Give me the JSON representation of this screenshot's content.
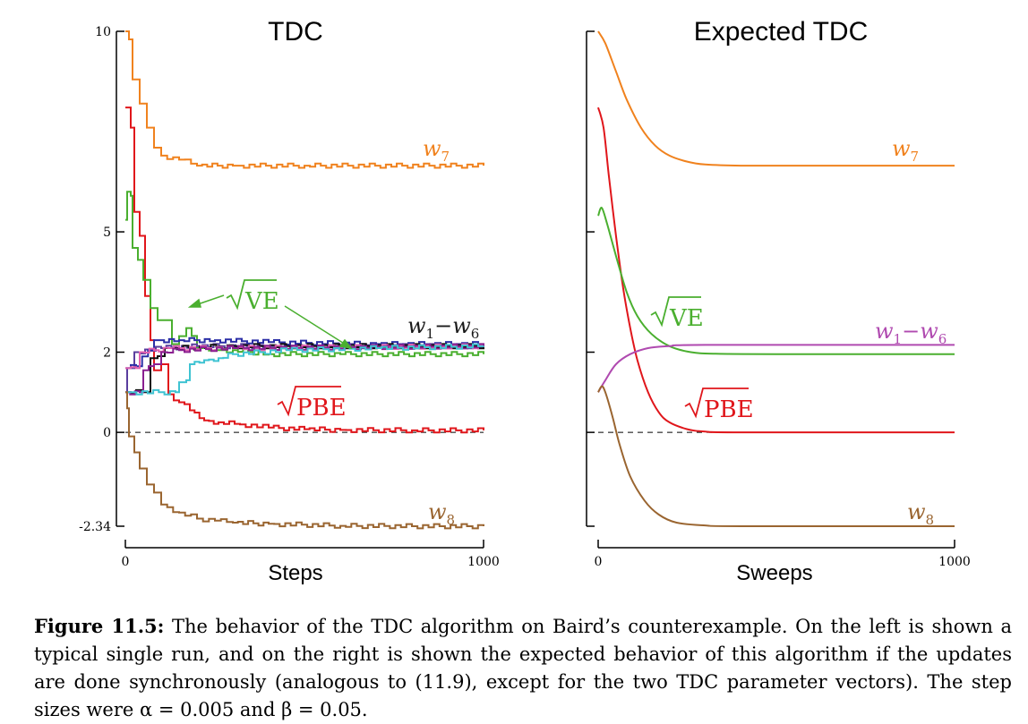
{
  "chart_data": [
    {
      "type": "line",
      "title": "TDC",
      "xlabel": "Steps",
      "ylabel": "",
      "xlim": [
        0,
        1000
      ],
      "ylim": [
        -2.34,
        10
      ],
      "x_ticks": [
        "0",
        "1000"
      ],
      "y_ticks": [
        "10",
        "5",
        "2",
        "0",
        "-2.34"
      ],
      "y_tick_values": [
        10,
        5,
        2,
        0,
        -2.34
      ],
      "reference_line": {
        "y": 0,
        "style": "dashed"
      },
      "series": [
        {
          "name": "w7",
          "label": "w",
          "sub": "7",
          "color": "#f0821e",
          "points": [
            [
              0,
              10
            ],
            [
              10,
              9.8
            ],
            [
              20,
              8.8
            ],
            [
              40,
              8.2
            ],
            [
              60,
              7.6
            ],
            [
              80,
              7.1
            ],
            [
              100,
              6.9
            ],
            [
              150,
              6.8
            ],
            [
              200,
              6.65
            ],
            [
              300,
              6.65
            ],
            [
              500,
              6.65
            ],
            [
              1000,
              6.65
            ]
          ]
        },
        {
          "name": "√PBE",
          "label": "PBE",
          "color": "#e0161b",
          "points": [
            [
              0,
              8.1
            ],
            [
              15,
              7.6
            ],
            [
              25,
              5.5
            ],
            [
              40,
              4.9
            ],
            [
              55,
              3.4
            ],
            [
              70,
              2.3
            ],
            [
              80,
              1.55
            ],
            [
              100,
              1.7
            ],
            [
              120,
              0.95
            ],
            [
              150,
              0.75
            ],
            [
              180,
              0.55
            ],
            [
              220,
              0.3
            ],
            [
              260,
              0.25
            ],
            [
              320,
              0.2
            ],
            [
              400,
              0.12
            ],
            [
              500,
              0.08
            ],
            [
              600,
              0.06
            ],
            [
              800,
              0.05
            ],
            [
              1000,
              0.05
            ]
          ]
        },
        {
          "name": "√VE",
          "label": "VE",
          "color": "#4aaf2f",
          "points": [
            [
              0,
              5.3
            ],
            [
              5,
              6.0
            ],
            [
              15,
              5.9
            ],
            [
              20,
              4.6
            ],
            [
              35,
              4.3
            ],
            [
              50,
              3.8
            ],
            [
              70,
              3.1
            ],
            [
              90,
              2.8
            ],
            [
              110,
              2.8
            ],
            [
              130,
              2.2
            ],
            [
              150,
              2.4
            ],
            [
              170,
              2.6
            ],
            [
              200,
              2.1
            ],
            [
              250,
              2.05
            ],
            [
              300,
              2.05
            ],
            [
              400,
              1.95
            ],
            [
              600,
              1.95
            ],
            [
              1000,
              1.95
            ]
          ]
        },
        {
          "name": "w1–w6",
          "label": "w",
          "sub": "1",
          "label2": "w",
          "sub2": "6",
          "color": "#5a3e9e",
          "points": [
            [
              0,
              1.0
            ],
            [
              5,
              1.6
            ],
            [
              25,
              2.0
            ],
            [
              100,
              2.1
            ],
            [
              200,
              2.15
            ],
            [
              400,
              2.15
            ],
            [
              1000,
              2.15
            ]
          ]
        },
        {
          "name": "w1–w6 (dark blue)",
          "color": "#2b2fa6",
          "points": [
            [
              0,
              1.6
            ],
            [
              30,
              1.65
            ],
            [
              80,
              2.3
            ],
            [
              150,
              2.3
            ],
            [
              250,
              2.3
            ],
            [
              400,
              2.25
            ],
            [
              700,
              2.2
            ],
            [
              1000,
              2.2
            ]
          ]
        },
        {
          "name": "w1–w6 (black)",
          "color": "#111111",
          "points": [
            [
              0,
              1.0
            ],
            [
              60,
              1.0
            ],
            [
              70,
              1.85
            ],
            [
              90,
              1.9
            ],
            [
              110,
              2.1
            ],
            [
              130,
              2.1
            ],
            [
              300,
              2.15
            ],
            [
              1000,
              2.15
            ]
          ]
        },
        {
          "name": "w1–w6 (pink)",
          "color": "#e060b0",
          "points": [
            [
              0,
              1.6
            ],
            [
              30,
              1.6
            ],
            [
              40,
              2.0
            ],
            [
              80,
              2.05
            ],
            [
              120,
              2.1
            ],
            [
              300,
              2.1
            ],
            [
              1000,
              2.15
            ]
          ]
        },
        {
          "name": "w1–w6 (purple)",
          "color": "#8a2090",
          "points": [
            [
              0,
              1.0
            ],
            [
              40,
              1.0
            ],
            [
              50,
              1.55
            ],
            [
              80,
              1.7
            ],
            [
              100,
              2.0
            ],
            [
              150,
              2.05
            ],
            [
              300,
              2.1
            ],
            [
              1000,
              2.15
            ]
          ]
        },
        {
          "name": "w1–w6 (cyan)",
          "color": "#3fc3d2",
          "points": [
            [
              0,
              1.0
            ],
            [
              140,
              1.0
            ],
            [
              150,
              1.25
            ],
            [
              170,
              1.3
            ],
            [
              180,
              1.7
            ],
            [
              220,
              1.8
            ],
            [
              260,
              1.85
            ],
            [
              300,
              1.95
            ],
            [
              450,
              2.05
            ],
            [
              700,
              2.1
            ],
            [
              1000,
              2.15
            ]
          ]
        },
        {
          "name": "w8",
          "label": "w",
          "sub": "8",
          "color": "#9a6530",
          "points": [
            [
              0,
              1.0
            ],
            [
              5,
              0.6
            ],
            [
              10,
              -0.1
            ],
            [
              25,
              -0.5
            ],
            [
              40,
              -0.9
            ],
            [
              60,
              -1.3
            ],
            [
              80,
              -1.5
            ],
            [
              100,
              -1.8
            ],
            [
              150,
              -2.0
            ],
            [
              200,
              -2.15
            ],
            [
              250,
              -2.2
            ],
            [
              300,
              -2.25
            ],
            [
              400,
              -2.28
            ],
            [
              600,
              -2.33
            ],
            [
              800,
              -2.34
            ],
            [
              1000,
              -2.34
            ]
          ]
        }
      ]
    },
    {
      "type": "line",
      "title": "Expected TDC",
      "xlabel": "Sweeps",
      "ylabel": "",
      "xlim": [
        0,
        1000
      ],
      "ylim": [
        -2.34,
        10
      ],
      "x_ticks": [
        "0",
        "1000"
      ],
      "y_tick_values": [
        10,
        5,
        2,
        0,
        -2.34
      ],
      "reference_line": {
        "y": 0,
        "style": "dashed"
      },
      "series": [
        {
          "name": "w7",
          "label": "w",
          "sub": "7",
          "color": "#f0821e",
          "points": [
            [
              0,
              10
            ],
            [
              20,
              9.7
            ],
            [
              50,
              9.0
            ],
            [
              80,
              8.3
            ],
            [
              120,
              7.6
            ],
            [
              160,
              7.15
            ],
            [
              200,
              6.9
            ],
            [
              250,
              6.75
            ],
            [
              300,
              6.68
            ],
            [
              400,
              6.65
            ],
            [
              600,
              6.65
            ],
            [
              1000,
              6.65
            ]
          ]
        },
        {
          "name": "√PBE",
          "label": "PBE",
          "color": "#e0161b",
          "points": [
            [
              0,
              8.1
            ],
            [
              15,
              7.6
            ],
            [
              30,
              6.4
            ],
            [
              50,
              4.9
            ],
            [
              70,
              3.6
            ],
            [
              90,
              2.6
            ],
            [
              110,
              1.8
            ],
            [
              140,
              1.0
            ],
            [
              170,
              0.5
            ],
            [
              200,
              0.25
            ],
            [
              250,
              0.08
            ],
            [
              300,
              0.02
            ],
            [
              400,
              0
            ],
            [
              1000,
              0
            ]
          ]
        },
        {
          "name": "√VE",
          "label": "VE",
          "color": "#4aaf2f",
          "points": [
            [
              0,
              5.4
            ],
            [
              10,
              5.6
            ],
            [
              25,
              5.2
            ],
            [
              50,
              4.4
            ],
            [
              80,
              3.5
            ],
            [
              110,
              2.9
            ],
            [
              150,
              2.45
            ],
            [
              200,
              2.15
            ],
            [
              260,
              2.0
            ],
            [
              330,
              1.96
            ],
            [
              500,
              1.95
            ],
            [
              1000,
              1.95
            ]
          ]
        },
        {
          "name": "w1–w6",
          "label": "w",
          "sub": "1",
          "label2": "w",
          "sub2": "6",
          "color": "#b04ab0",
          "points": [
            [
              0,
              1.0
            ],
            [
              20,
              1.3
            ],
            [
              50,
              1.7
            ],
            [
              90,
              1.95
            ],
            [
              140,
              2.1
            ],
            [
              200,
              2.15
            ],
            [
              300,
              2.18
            ],
            [
              1000,
              2.18
            ]
          ]
        },
        {
          "name": "w8",
          "label": "w",
          "sub": "8",
          "color": "#9a6530",
          "points": [
            [
              0,
              1.0
            ],
            [
              10,
              1.15
            ],
            [
              20,
              1.0
            ],
            [
              40,
              0.4
            ],
            [
              60,
              -0.3
            ],
            [
              90,
              -1.1
            ],
            [
              130,
              -1.7
            ],
            [
              170,
              -2.05
            ],
            [
              220,
              -2.25
            ],
            [
              300,
              -2.32
            ],
            [
              400,
              -2.34
            ],
            [
              1000,
              -2.34
            ]
          ]
        }
      ]
    }
  ],
  "caption": {
    "figure_label": "Figure 11.5:",
    "text": "The behavior of the TDC algorithm on Baird’s counterexample. On the left is shown a typical single run, and on the right is shown the expected behavior of this algorithm if the updates are done synchronously (analogous to (11.9), except for the two TDC parameter vectors). The step sizes were α = 0.005 and β = 0.05."
  }
}
